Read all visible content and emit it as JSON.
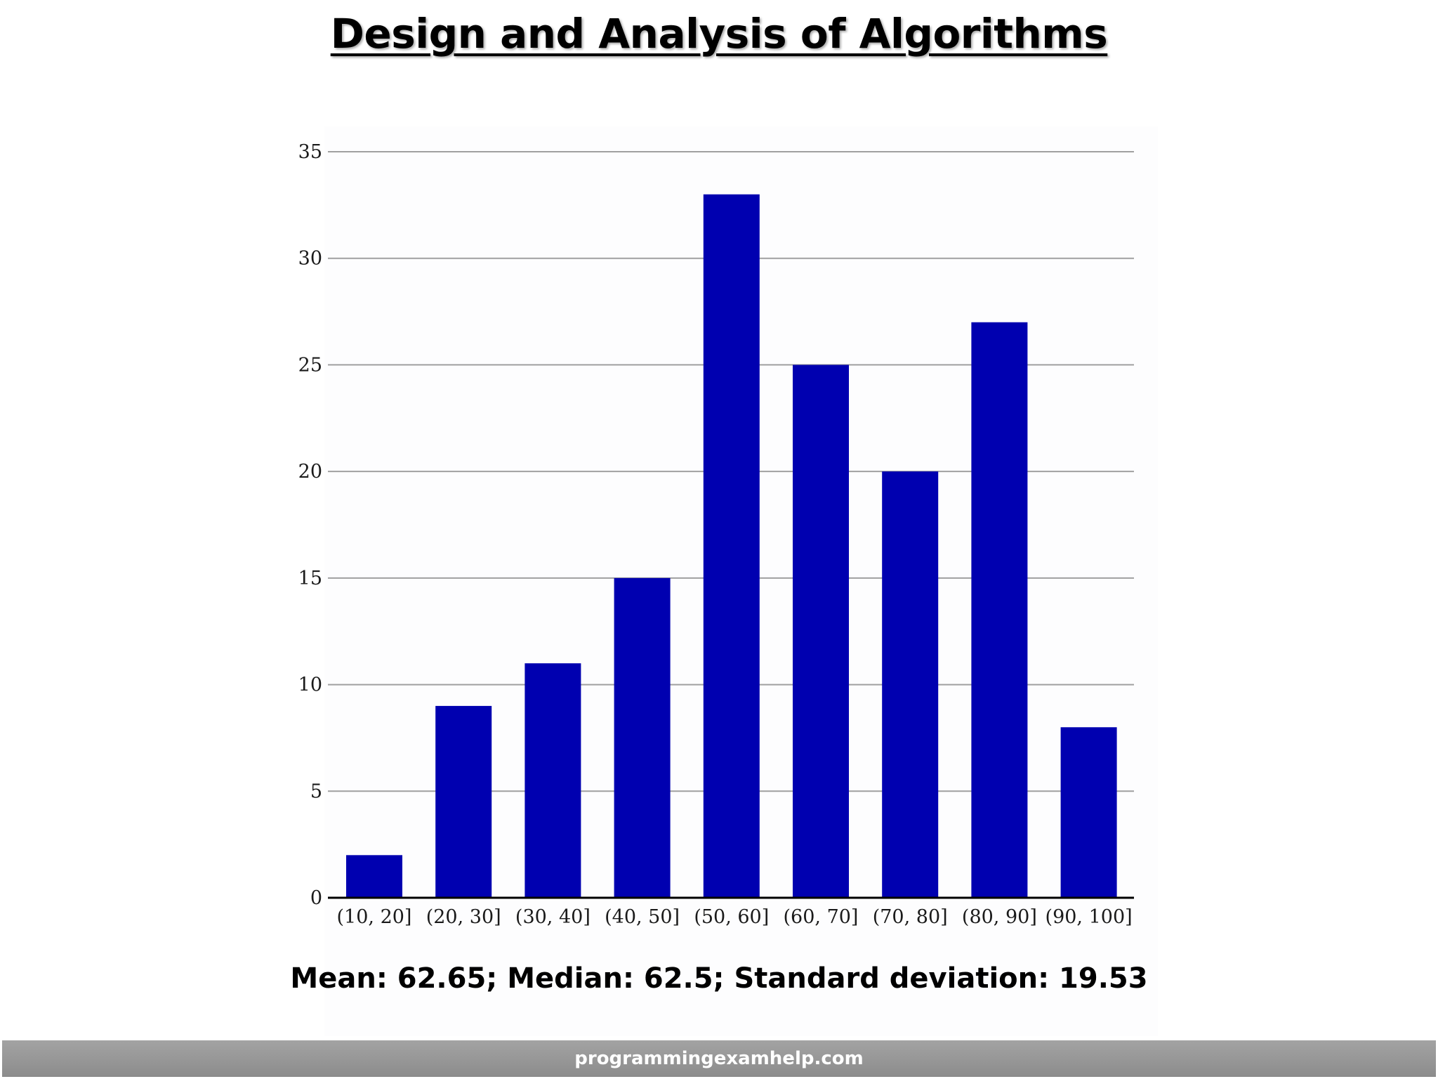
{
  "slide": {
    "title": "Design and Analysis of Algorithms",
    "stats": "Mean: 62.65; Median: 62.5; Standard deviation: 19.53",
    "footer": "programmingexamhelp.com"
  },
  "colors": {
    "bar": "#0000b0",
    "grid": "#a0a0a0",
    "axis": "#000000",
    "footer_bar": "#969696"
  },
  "chart_data": {
    "type": "bar",
    "categories": [
      "(10, 20]",
      "(20, 30]",
      "(30, 40]",
      "(40, 50]",
      "(50, 60]",
      "(60, 70]",
      "(70, 80]",
      "(80, 90]",
      "(90, 100]"
    ],
    "values": [
      2,
      9,
      11,
      15,
      33,
      25,
      20,
      27,
      8
    ],
    "yticks": [
      "0",
      "5",
      "10",
      "15",
      "20",
      "25",
      "30",
      "35"
    ],
    "ylim": [
      0,
      35
    ],
    "grid": true,
    "legend": "none",
    "title": "",
    "xlabel": "",
    "ylabel": ""
  }
}
